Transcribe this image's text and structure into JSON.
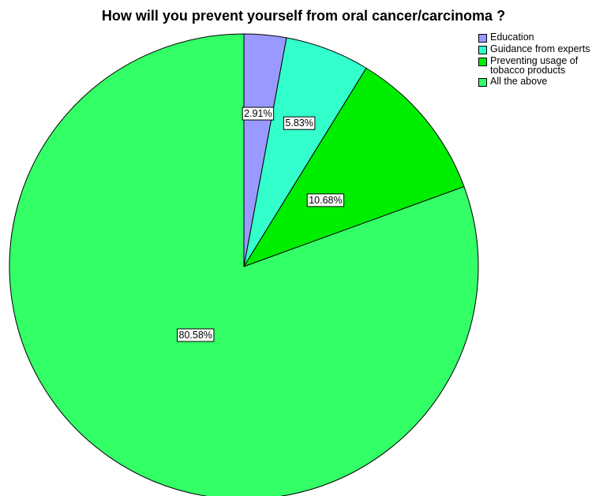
{
  "chart_data": {
    "type": "pie",
    "title": "How will you prevent yourself from oral cancer/carcinoma ?",
    "legend_position": "top-right",
    "slices": [
      {
        "name": "Education",
        "value": 2.91,
        "label": "2.91%",
        "color": "#9999ff"
      },
      {
        "name": "Guidance from experts",
        "value": 5.83,
        "label": "5.83%",
        "color": "#33ffcc"
      },
      {
        "name": "Preventing usage of tobacco products",
        "value": 10.68,
        "label": "10.68%",
        "color": "#00ee00"
      },
      {
        "name": "All the above",
        "value": 80.58,
        "label": "80.58%",
        "color": "#33ff66"
      }
    ]
  }
}
